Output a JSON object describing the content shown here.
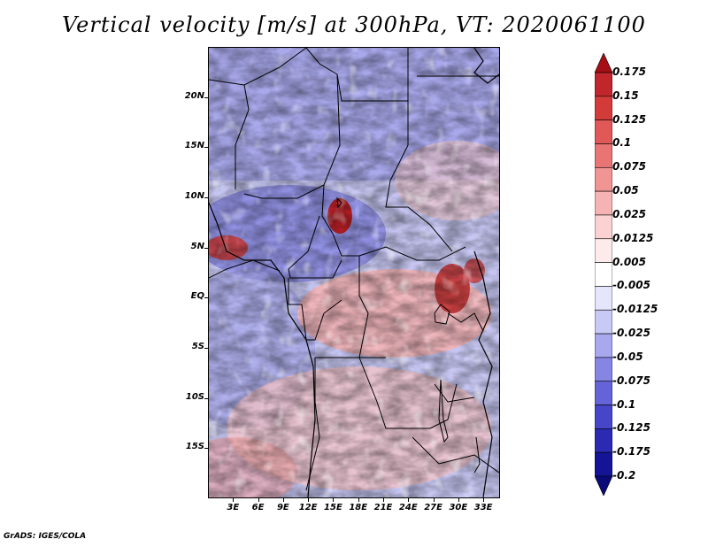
{
  "title": "Vertical velocity [m/s] at 300hPa, VT: 2020061100",
  "footer": "GrADS: IGES/COLA",
  "map": {
    "variable": "vertical velocity",
    "level": "300hPa",
    "valid_time": "2020061100",
    "lat_labels": [
      "20N",
      "15N",
      "10N",
      "5N",
      "EQ",
      "5S",
      "10S",
      "15S"
    ],
    "lat_values": [
      20,
      15,
      10,
      5,
      0,
      -5,
      -10,
      -15
    ],
    "lon_labels": [
      "3E",
      "6E",
      "9E",
      "12E",
      "15E",
      "18E",
      "21E",
      "24E",
      "27E",
      "30E",
      "33E"
    ],
    "lon_values": [
      3,
      6,
      9,
      12,
      15,
      18,
      21,
      24,
      27,
      30,
      33
    ],
    "lon_range": [
      0,
      35
    ],
    "lat_range": [
      -20,
      25
    ]
  },
  "colorbar": {
    "labels": [
      "0.175",
      "0.15",
      "0.125",
      "0.1",
      "0.075",
      "0.05",
      "0.025",
      "0.0125",
      "0.005",
      "-0.005",
      "-0.0125",
      "-0.025",
      "-0.05",
      "-0.075",
      "-0.1",
      "-0.125",
      "-0.175",
      "-0.2"
    ],
    "colors": [
      "#a50f15",
      "#c0262b",
      "#d33b3b",
      "#e05858",
      "#e87474",
      "#f09494",
      "#f5b3b3",
      "#fad2d2",
      "#fdeaea",
      "#ffffff",
      "#e5e5fb",
      "#c9c9f5",
      "#a8a8ee",
      "#8585e4",
      "#6464d8",
      "#4646c8",
      "#2a2ab2",
      "#141496",
      "#0a0a78"
    ]
  }
}
